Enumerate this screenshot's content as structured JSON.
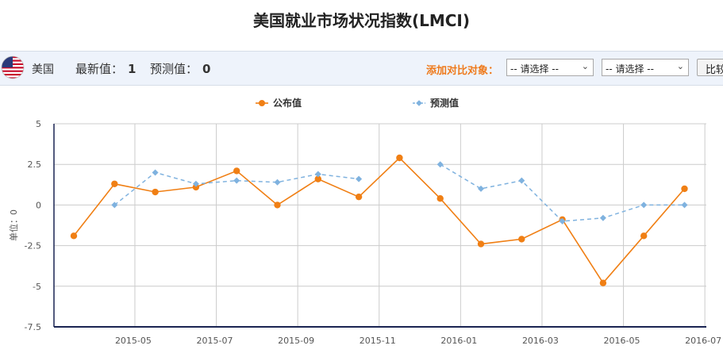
{
  "page": {
    "title": "美国就业市场状况指数(LMCI)",
    "country": "美国",
    "latest_label": "最新值：",
    "latest_value": "1",
    "forecast_label": "预测值：",
    "forecast_value": "0",
    "compare_label": "添加对比对象：",
    "select1": "-- 请选择 --",
    "select2": "-- 请选择 --",
    "compare_button": "比较"
  },
  "chart_data": {
    "type": "line",
    "ylabel": "单位：0",
    "ylim": [
      -7.5,
      5
    ],
    "yticks": [
      5,
      2.5,
      0,
      -2.5,
      -5,
      -7.5
    ],
    "ytick_labels": [
      "5",
      "2.5",
      "0",
      "-2.5",
      "-5",
      "-7.5"
    ],
    "x": [
      "2015-04",
      "2015-05",
      "2015-06",
      "2015-07",
      "2015-08",
      "2015-09",
      "2015-10",
      "2015-11",
      "2015-12",
      "2016-01",
      "2016-02",
      "2016-03",
      "2016-04",
      "2016-05",
      "2016-06",
      "2016-07",
      "2016-08"
    ],
    "xtick_labels": [
      "2015-05",
      "2015-07",
      "2015-09",
      "2015-11",
      "2016-01",
      "2016-03",
      "2016-05",
      "2016-07"
    ],
    "legend_position": "top",
    "grid": true,
    "series": [
      {
        "name": "公布值",
        "color": "#f07f14",
        "style": "solid",
        "marker": "circle",
        "values": [
          -1.9,
          1.3,
          0.8,
          1.1,
          2.1,
          0.0,
          1.6,
          0.5,
          2.9,
          0.4,
          -2.4,
          -2.1,
          -0.9,
          -4.8,
          -1.9,
          1.0,
          null
        ]
      },
      {
        "name": "预测值",
        "color": "#7fb2df",
        "style": "dashed",
        "marker": "diamond",
        "values": [
          null,
          0.0,
          2.0,
          1.3,
          1.5,
          1.4,
          1.9,
          1.6,
          null,
          2.5,
          1.0,
          1.5,
          -1.0,
          -0.8,
          0.0,
          0.0,
          null
        ]
      }
    ]
  }
}
